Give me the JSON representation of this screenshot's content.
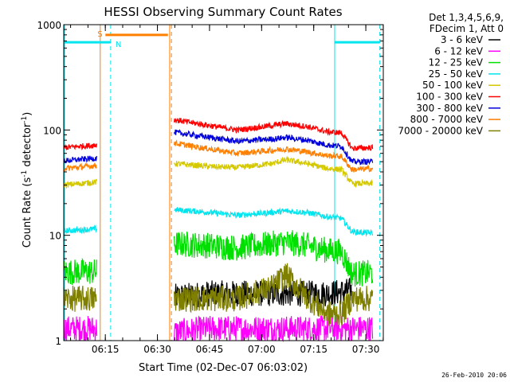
{
  "chart_data": {
    "type": "line",
    "title": "HESSI Observing Summary Count Rates",
    "xlabel": "Start Time (02-Dec-07 06:03:02)",
    "ylabel_prefix": "Count Rate (s",
    "ylabel_sup1": "-1",
    "ylabel_mid": " detector",
    "ylabel_sup2": "-1",
    "ylabel_suffix": ")",
    "x_unit": "minutes after 06:03:02",
    "xlim": [
      0,
      92
    ],
    "ylim": [
      1,
      1000
    ],
    "yscale": "log",
    "x_ticks": [
      {
        "label": "06:15",
        "x": 11.97
      },
      {
        "label": "06:30",
        "x": 26.97
      },
      {
        "label": "06:45",
        "x": 41.97
      },
      {
        "label": "07:00",
        "x": 56.97
      },
      {
        "label": "07:15",
        "x": 71.97
      },
      {
        "label": "07:30",
        "x": 86.97
      }
    ],
    "y_ticks": [
      {
        "label": "1",
        "y": 1
      },
      {
        "label": "10",
        "y": 10
      },
      {
        "label": "100",
        "y": 100
      },
      {
        "label": "1000",
        "y": 1000
      }
    ],
    "gap": [
      9.5,
      31.8
    ],
    "legend_position": "top-right",
    "legend_header": [
      "Det 1,3,4,5,6,9,",
      "FDecim 1, Att 0"
    ],
    "series": [
      {
        "name": "3 - 6 keV",
        "color": "#000000",
        "x": [
          0,
          9.5,
          31.8,
          42,
          50,
          60,
          64,
          70,
          76,
          80,
          83,
          89
        ],
        "y": [
          null,
          null,
          2.6,
          2.8,
          2.8,
          2.8,
          2.8,
          2.8,
          2.8,
          2.9,
          3.0,
          null
        ]
      },
      {
        "name": "6 - 12 keV",
        "color": "#ff00ff",
        "x": [
          0,
          9.5,
          31.8,
          42,
          50,
          60,
          64,
          70,
          76,
          80,
          83,
          89
        ],
        "y": [
          1.3,
          1.3,
          1.2,
          1.3,
          1.3,
          1.3,
          1.3,
          1.3,
          1.3,
          1.3,
          1.3,
          1.3
        ]
      },
      {
        "name": "12 - 25 keV",
        "color": "#00e000",
        "x": [
          0,
          9.5,
          31.8,
          42,
          50,
          60,
          64,
          70,
          76,
          80,
          83,
          89
        ],
        "y": [
          4.5,
          4.5,
          8.3,
          8.0,
          7.6,
          8.3,
          8.6,
          8.0,
          7.2,
          7.0,
          4.3,
          4.4
        ]
      },
      {
        "name": "25 - 50 keV",
        "color": "#00e5ee",
        "x": [
          0,
          9.5,
          31.8,
          42,
          50,
          60,
          64,
          70,
          76,
          80,
          83,
          89
        ],
        "y": [
          11.0,
          11.5,
          17.5,
          16.5,
          15.5,
          16.5,
          17.0,
          16.5,
          15.0,
          14.5,
          10.8,
          10.5
        ]
      },
      {
        "name": "50 - 100 keV",
        "color": "#d4c800",
        "x": [
          0,
          9.5,
          31.8,
          42,
          50,
          60,
          64,
          70,
          76,
          80,
          83,
          89
        ],
        "y": [
          30,
          32,
          48,
          45,
          44,
          48,
          52,
          48,
          43,
          42,
          31,
          31
        ]
      },
      {
        "name": "100 - 300 keV",
        "color": "#ff0000",
        "x": [
          0,
          9.5,
          31.8,
          42,
          50,
          60,
          64,
          70,
          76,
          80,
          83,
          89
        ],
        "y": [
          68,
          72,
          125,
          110,
          100,
          110,
          115,
          108,
          96,
          94,
          67,
          68
        ]
      },
      {
        "name": "300 - 800 keV",
        "color": "#0000dd",
        "x": [
          0,
          9.5,
          31.8,
          42,
          50,
          60,
          64,
          70,
          76,
          80,
          83,
          89
        ],
        "y": [
          51,
          54,
          95,
          85,
          78,
          82,
          85,
          80,
          72,
          70,
          50,
          50
        ]
      },
      {
        "name": "800 - 7000 keV",
        "color": "#ff7f00",
        "x": [
          0,
          9.5,
          31.8,
          42,
          50,
          60,
          64,
          70,
          76,
          80,
          83,
          89
        ],
        "y": [
          43,
          46,
          75,
          66,
          60,
          64,
          66,
          62,
          57,
          56,
          42,
          43
        ]
      },
      {
        "name": "7000 - 20000 keV",
        "color": "#808000",
        "x": [
          0,
          9.5,
          31.8,
          42,
          50,
          60,
          64,
          70,
          76,
          80,
          83,
          89
        ],
        "y": [
          2.5,
          2.5,
          2.5,
          2.5,
          2.5,
          3.2,
          4.2,
          2.6,
          1.8,
          1.8,
          2.5,
          2.5
        ]
      }
    ],
    "annotations": {
      "saa_label": "S",
      "night_label": "N",
      "saa_interval": [
        12.0,
        30.0
      ],
      "saa_level": 800,
      "night_intervals": [
        [
          0,
          13.5
        ],
        [
          78.0,
          91.0
        ]
      ],
      "night_level": 680,
      "night_bounds": [
        13.5,
        78.0,
        91.0
      ],
      "saa_bounds": [
        10.5,
        30.5
      ],
      "orange_dashed": [
        31.0
      ],
      "cyan_solid": [
        78.0
      ]
    },
    "footer_date": "26-Feb-2010 20:06",
    "colors": {
      "saa": "#ff7f00",
      "night": "#00e5ee",
      "axis": "#000000"
    }
  }
}
